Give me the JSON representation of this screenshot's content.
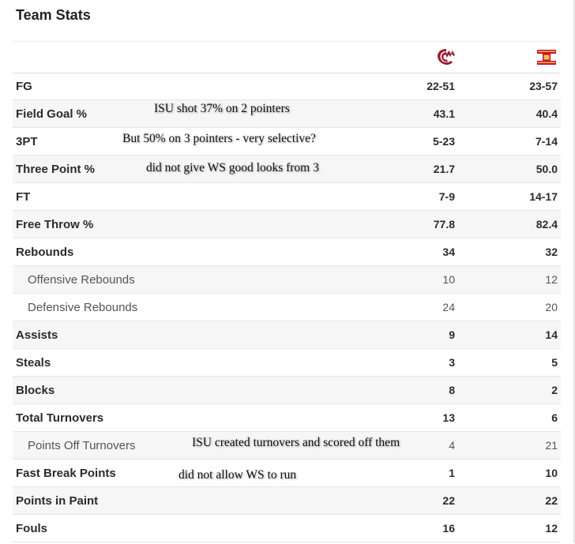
{
  "header": {
    "title": "Team Stats"
  },
  "teams": [
    {
      "name_icon": "wsu-cougars-logo-icon",
      "color": "#981e32"
    },
    {
      "name_icon": "iowa-state-cyclones-logo-icon",
      "color": "#c8102e",
      "accent": "#f1be48"
    }
  ],
  "stats": [
    {
      "label": "FG",
      "team1": "22-51",
      "team2": "23-57",
      "sub": false
    },
    {
      "label": "Field Goal %",
      "team1": "43.1",
      "team2": "40.4",
      "sub": false
    },
    {
      "label": "3PT",
      "team1": "5-23",
      "team2": "7-14",
      "sub": false
    },
    {
      "label": "Three Point %",
      "team1": "21.7",
      "team2": "50.0",
      "sub": false
    },
    {
      "label": "FT",
      "team1": "7-9",
      "team2": "14-17",
      "sub": false
    },
    {
      "label": "Free Throw %",
      "team1": "77.8",
      "team2": "82.4",
      "sub": false
    },
    {
      "label": "Rebounds",
      "team1": "34",
      "team2": "32",
      "sub": false
    },
    {
      "label": "Offensive Rebounds",
      "team1": "10",
      "team2": "12",
      "sub": true
    },
    {
      "label": "Defensive Rebounds",
      "team1": "24",
      "team2": "20",
      "sub": true
    },
    {
      "label": "Assists",
      "team1": "9",
      "team2": "14",
      "sub": false
    },
    {
      "label": "Steals",
      "team1": "3",
      "team2": "5",
      "sub": false
    },
    {
      "label": "Blocks",
      "team1": "8",
      "team2": "2",
      "sub": false
    },
    {
      "label": "Total Turnovers",
      "team1": "13",
      "team2": "6",
      "sub": false
    },
    {
      "label": "Points Off Turnovers",
      "team1": "4",
      "team2": "21",
      "sub": true
    },
    {
      "label": "Fast Break Points",
      "team1": "1",
      "team2": "10",
      "sub": false
    },
    {
      "label": "Points in Paint",
      "team1": "22",
      "team2": "22",
      "sub": false
    },
    {
      "label": "Fouls",
      "team1": "16",
      "team2": "12",
      "sub": false
    }
  ],
  "annotations": [
    {
      "text": "ISU shot 37% on 2 pointers"
    },
    {
      "text": "But 50% on 3 pointers - very selective?"
    },
    {
      "text": "did not give WS good looks from 3"
    },
    {
      "text": "ISU created turnovers and scored off them"
    },
    {
      "text": "did not allow WS to run"
    }
  ]
}
